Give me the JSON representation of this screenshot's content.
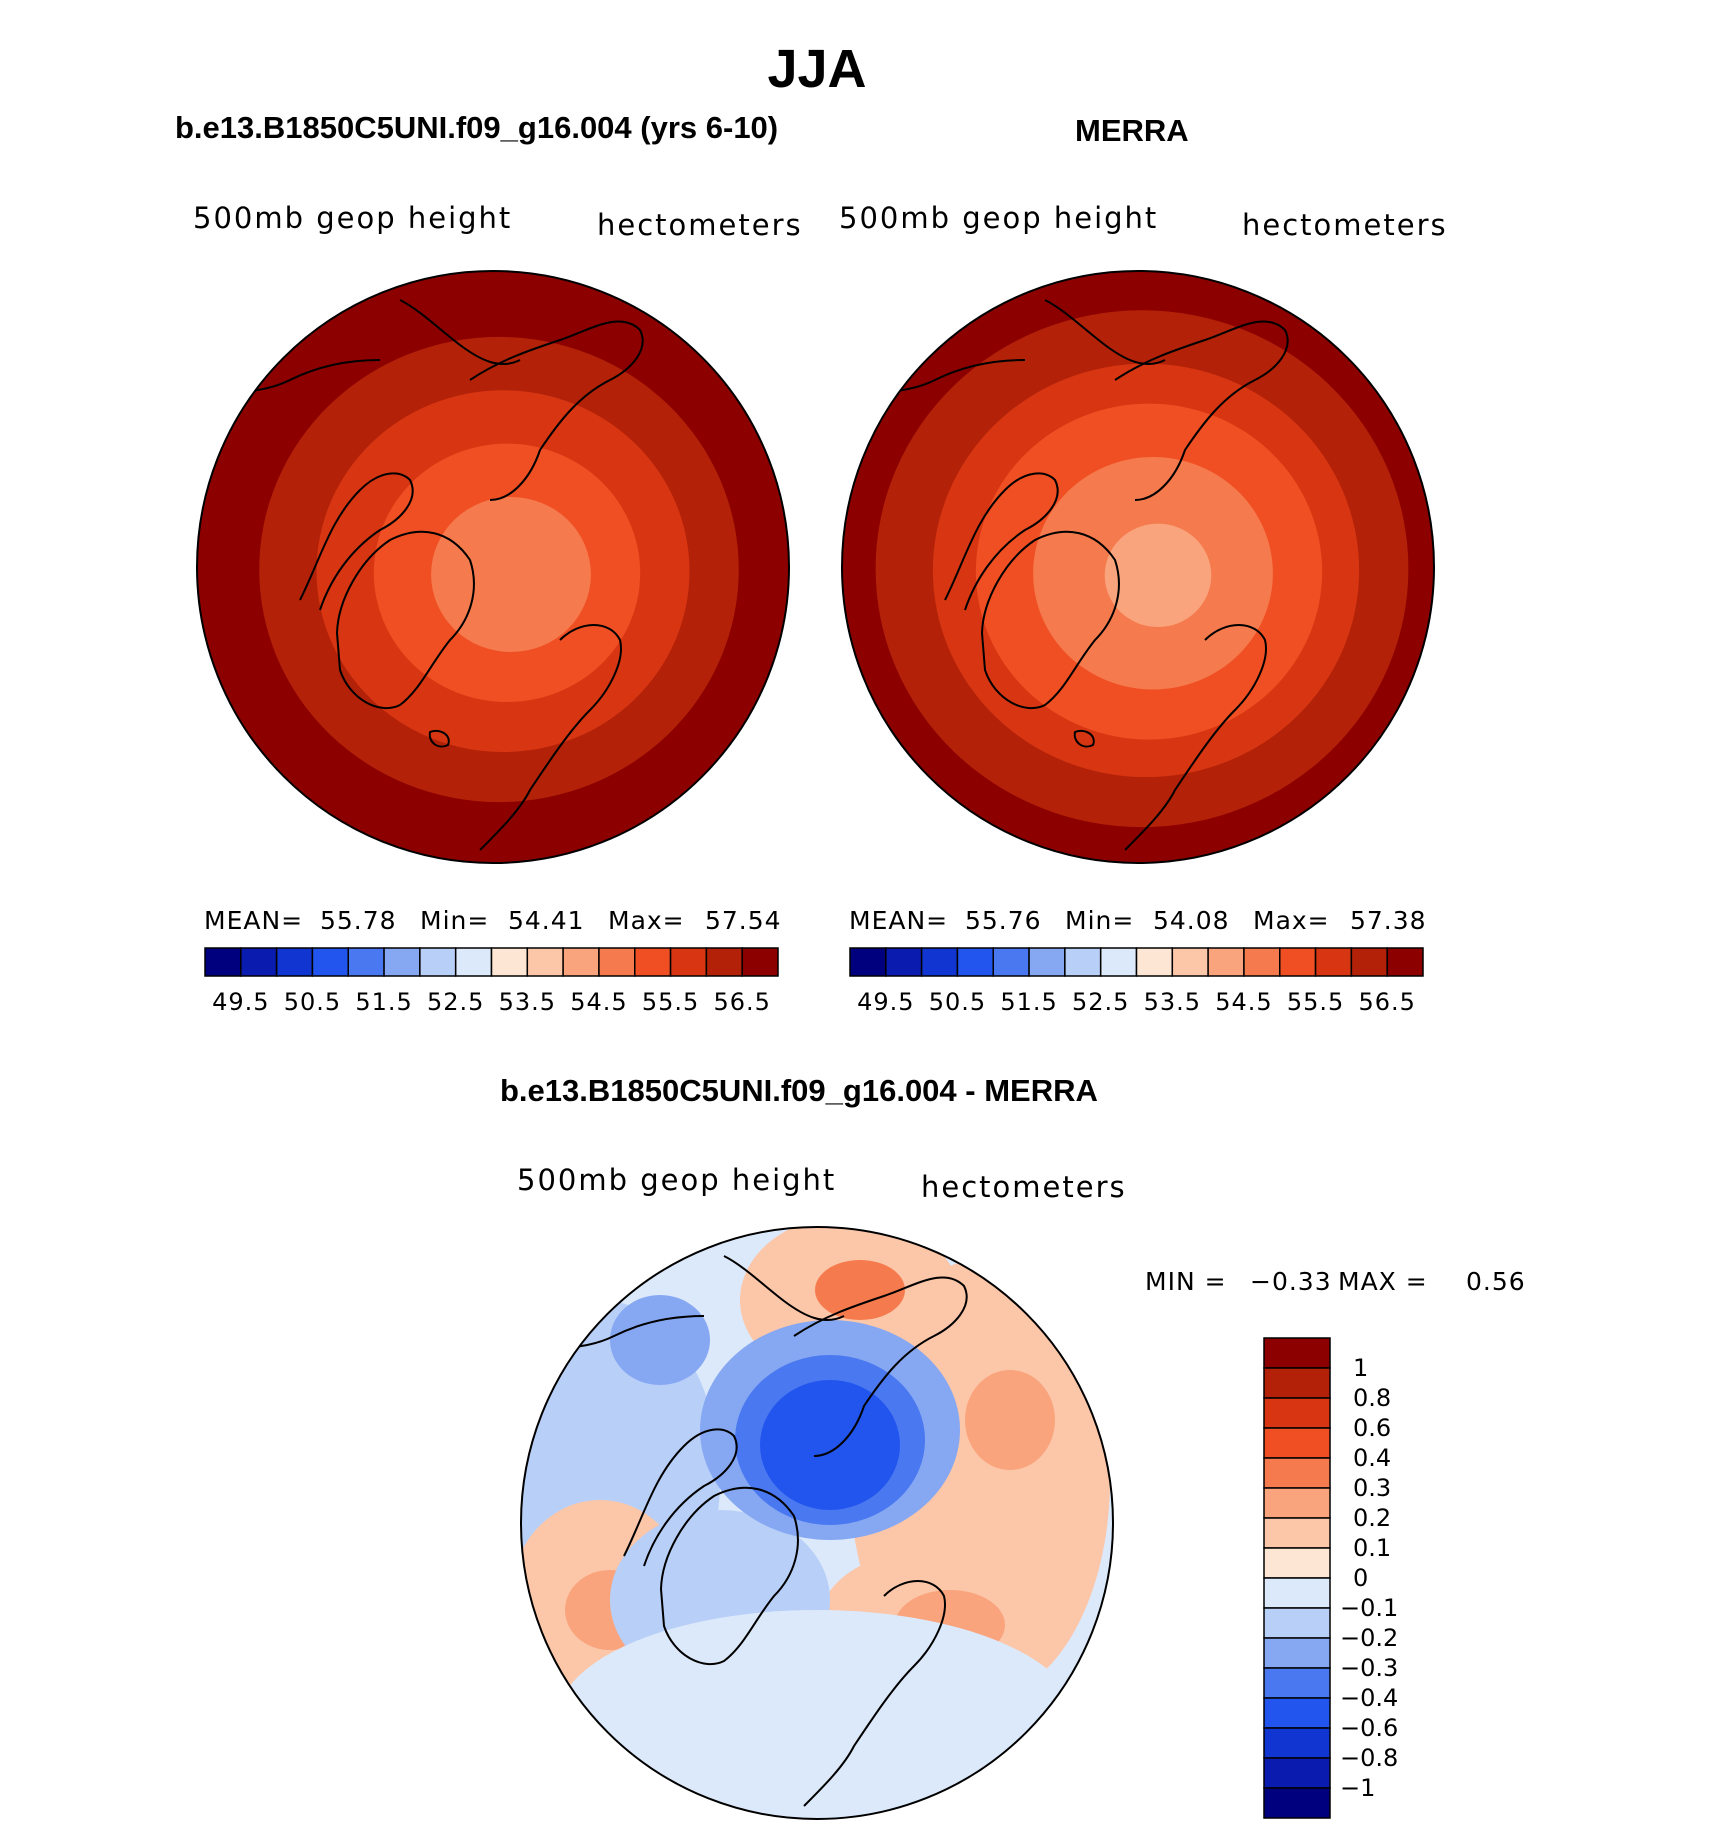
{
  "chart_data": {
    "type": "heatmap",
    "title": "JJA",
    "panels": [
      {
        "title": "b.e13.B1850C5UNI.f09_g16.004 (yrs 6-10)",
        "variable": "500mb geop height",
        "units": "hectometers",
        "stats": {
          "mean_label": "MEAN=",
          "mean": "55.78",
          "min_label": "Min=",
          "min": "54.41",
          "max_label": "Max=",
          "max": "57.54"
        },
        "projection": "north polar stereographic",
        "field": {
          "pole_value": 54.5,
          "edge_value": 57.2,
          "center_high_value": 54.41
        }
      },
      {
        "title": "MERRA",
        "variable": "500mb geop height",
        "units": "hectometers",
        "stats": {
          "mean_label": "MEAN=",
          "mean": "55.76",
          "min_label": "Min=",
          "min": "54.08",
          "max_label": "Max=",
          "max": "57.38"
        },
        "projection": "north polar stereographic",
        "field": {
          "pole_value": 54.1,
          "edge_value": 57.1
        }
      }
    ],
    "colorbar": {
      "levels": [
        49.5,
        50.0,
        50.5,
        51.0,
        51.5,
        52.0,
        52.5,
        53.0,
        53.5,
        54.0,
        54.5,
        55.0,
        55.5,
        56.0,
        56.5
      ],
      "labels": [
        "49.5",
        "50.5",
        "51.5",
        "52.5",
        "53.5",
        "54.5",
        "55.5",
        "56.5"
      ],
      "colors": [
        "#00007f",
        "#0a1bb0",
        "#1035d0",
        "#2255ee",
        "#4a78f0",
        "#86a8f2",
        "#b8cff8",
        "#dce9fa",
        "#fde6d3",
        "#fcc6a8",
        "#f9a47c",
        "#f57a4d",
        "#ef4f23",
        "#d83612",
        "#b32208",
        "#8c0000"
      ]
    },
    "difference": {
      "title": "b.e13.B1850C5UNI.f09_g16.004 - MERRA",
      "variable": "500mb geop height",
      "units": "hectometers",
      "min_label": "MIN =",
      "min": "−0.33",
      "max_label": "MAX =",
      "max": "0.56",
      "levels": [
        -1,
        -0.8,
        -0.6,
        -0.4,
        -0.3,
        -0.2,
        -0.1,
        0,
        0.1,
        0.2,
        0.3,
        0.4,
        0.6,
        0.8,
        1
      ],
      "labels": [
        "1",
        "0.8",
        "0.6",
        "0.4",
        "0.3",
        "0.2",
        "0.1",
        "0",
        "−0.1",
        "−0.2",
        "−0.3",
        "−0.4",
        "−0.6",
        "−0.8",
        "−1"
      ],
      "colors": [
        "#8c0000",
        "#b32208",
        "#d83612",
        "#ef4f23",
        "#f57a4d",
        "#f9a47c",
        "#fcc6a8",
        "#fde6d3",
        "#dce9fa",
        "#b8cff8",
        "#86a8f2",
        "#4a78f0",
        "#2255ee",
        "#1035d0",
        "#0a1bb0",
        "#00007f"
      ]
    }
  }
}
